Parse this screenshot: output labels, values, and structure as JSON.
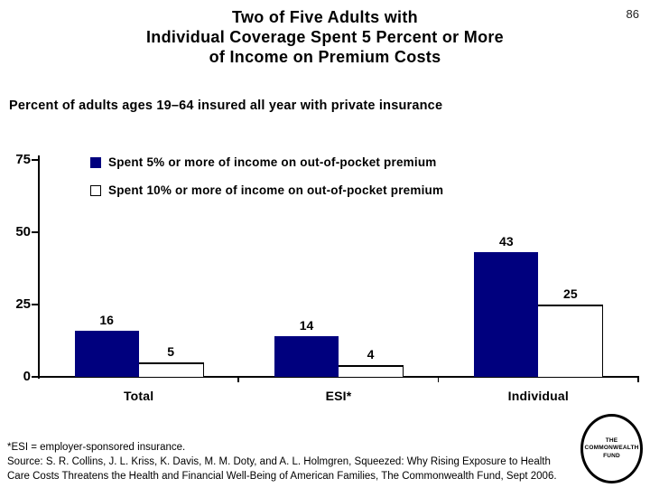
{
  "page": {
    "number": "86"
  },
  "title": {
    "lines": [
      "Two of Five Adults with",
      "Individual Coverage Spent 5 Percent or More",
      "of Income on Premium Costs"
    ]
  },
  "subtitle": "Percent of adults ages 19–64 insured all year with private insurance",
  "legend": [
    {
      "label": "Spent 5% or more of income on out-of-pocket premium",
      "swatch": "navy-filled-square"
    },
    {
      "label": "Spent 10% or more of income on out-of-pocket premium",
      "swatch": "white-outline-square"
    }
  ],
  "chart_data": {
    "type": "bar",
    "categories": [
      "Total",
      "ESI*",
      "Individual"
    ],
    "series": [
      {
        "name": "Spent 5% or more of income on out-of-pocket premium",
        "values": [
          16,
          14,
          43
        ],
        "style": "filled",
        "color": "#00007E"
      },
      {
        "name": "Spent 10% or more of income on out-of-pocket premium",
        "values": [
          5,
          4,
          25
        ],
        "style": "outline",
        "color": "#FFFFFF"
      }
    ],
    "yticks": [
      0,
      25,
      50,
      75
    ],
    "ylim": [
      0,
      75
    ],
    "grid": false,
    "value_labels": true,
    "legend_position": "top-left-inside",
    "title": "Two of Five Adults with Individual Coverage Spent 5 Percent or More of Income on Premium Costs",
    "xlabel": "",
    "ylabel": "Percent of adults ages 19–64 insured all year with private insurance"
  },
  "footnotes": {
    "lines": [
      "*ESI = employer-sponsored insurance.",
      "Source: S. R. Collins, J. L. Kriss, K. Davis, M. M. Doty, and A. L. Holmgren, Squeezed: Why Rising Exposure to Health",
      "Care Costs Threatens the Health and Financial Well-Being of American Families, The Commonwealth Fund, Sept 2006."
    ]
  },
  "logo": {
    "lines": [
      "THE",
      "COMMONWEALTH",
      "FUND"
    ]
  },
  "colors": {
    "bar_fill": "#00007E",
    "outline": "#000000",
    "text": "#000000",
    "background": "#FFFFFF"
  }
}
